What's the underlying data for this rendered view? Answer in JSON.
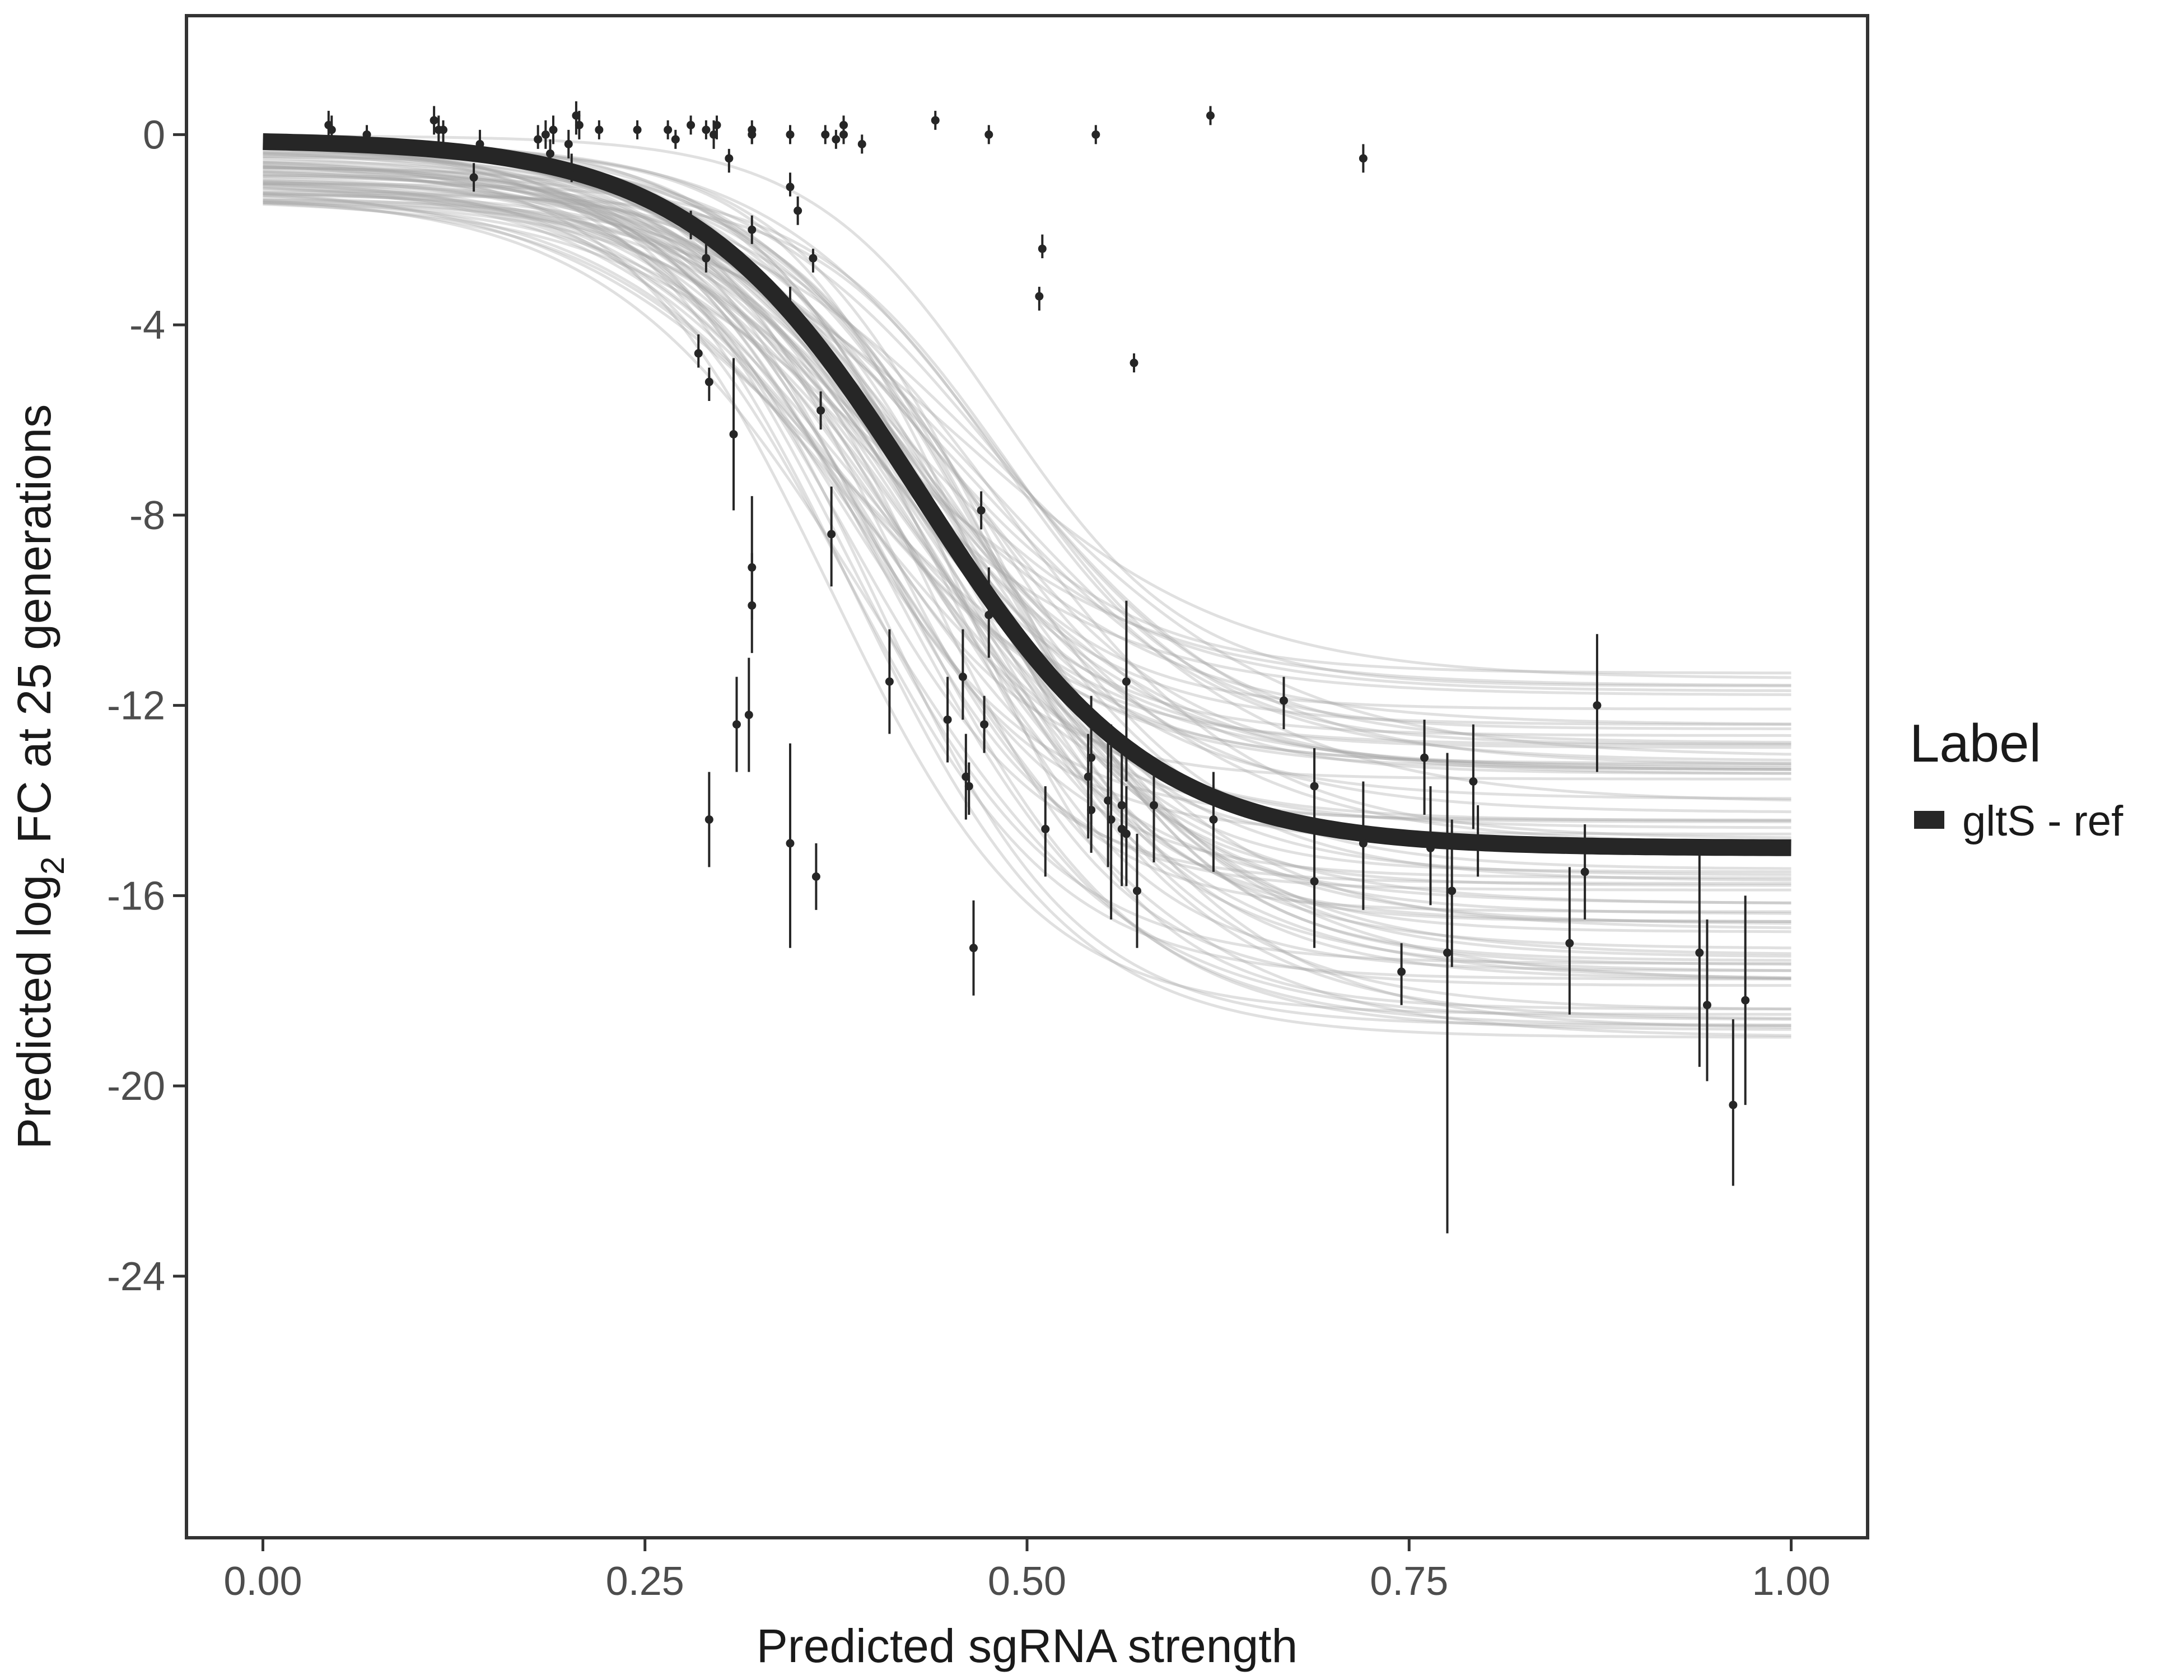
{
  "chart_data": {
    "type": "scatter",
    "title": "",
    "xlabel": "Predicted sgRNA strength",
    "ylabel_parts": {
      "before": "Predicted  log",
      "subscript": "2",
      "after": " FC at 25 generations"
    },
    "xlim": [
      -0.05,
      1.05
    ],
    "ylim": [
      -29.5,
      2.5
    ],
    "x_ticks": [
      0,
      0.25,
      0.5,
      0.75,
      1
    ],
    "x_tick_labels": [
      "0.00",
      "0.25",
      "0.50",
      "0.75",
      "1.00"
    ],
    "y_ticks": [
      0,
      -4,
      -8,
      -12,
      -16,
      -20,
      -24
    ],
    "y_tick_labels": [
      "0",
      "-4",
      "-8",
      "-12",
      "-16",
      "-20",
      "-24"
    ],
    "grid": false,
    "legend": {
      "title": "Label",
      "position": "right",
      "entries": [
        {
          "label": "gltS - ref",
          "color": "#262626"
        }
      ]
    },
    "colors": {
      "fit": "#262626",
      "posterior": "#a6a6a6",
      "points": "#262626",
      "frame": "#333333"
    },
    "fit_curve": {
      "model": "logistic",
      "upper": -0.1,
      "lower": -15.0,
      "midpoint": 0.43,
      "scale": 0.075
    },
    "posterior_draws": {
      "count": 80,
      "upper_range": [
        -1.4,
        0.0
      ],
      "lower_range": [
        -19.0,
        -11.2
      ],
      "midpoint_range": [
        0.37,
        0.49
      ],
      "scale_range": [
        0.06,
        0.095
      ]
    },
    "points": [
      {
        "x": 0.043,
        "y": 0.2,
        "lo": -0.1,
        "hi": 0.5
      },
      {
        "x": 0.045,
        "y": 0.1,
        "lo": -0.2,
        "hi": 0.4
      },
      {
        "x": 0.068,
        "y": 0.0,
        "lo": -0.2,
        "hi": 0.2
      },
      {
        "x": 0.112,
        "y": 0.3,
        "lo": 0.0,
        "hi": 0.6
      },
      {
        "x": 0.115,
        "y": 0.1,
        "lo": -0.2,
        "hi": 0.4
      },
      {
        "x": 0.118,
        "y": 0.1,
        "lo": -0.2,
        "hi": 0.3
      },
      {
        "x": 0.138,
        "y": -0.9,
        "lo": -1.2,
        "hi": -0.6
      },
      {
        "x": 0.142,
        "y": -0.2,
        "lo": -0.5,
        "hi": 0.1
      },
      {
        "x": 0.18,
        "y": -0.1,
        "lo": -0.3,
        "hi": 0.2
      },
      {
        "x": 0.185,
        "y": 0.0,
        "lo": -0.3,
        "hi": 0.3
      },
      {
        "x": 0.188,
        "y": -0.4,
        "lo": -0.7,
        "hi": -0.1
      },
      {
        "x": 0.19,
        "y": 0.1,
        "lo": -0.2,
        "hi": 0.4
      },
      {
        "x": 0.2,
        "y": -0.2,
        "lo": -0.5,
        "hi": 0.1
      },
      {
        "x": 0.202,
        "y": -0.7,
        "lo": -1.0,
        "hi": -0.4
      },
      {
        "x": 0.205,
        "y": 0.4,
        "lo": 0.0,
        "hi": 0.7
      },
      {
        "x": 0.207,
        "y": 0.2,
        "lo": -0.1,
        "hi": 0.5
      },
      {
        "x": 0.22,
        "y": 0.1,
        "lo": -0.1,
        "hi": 0.3
      },
      {
        "x": 0.245,
        "y": 0.1,
        "lo": -0.1,
        "hi": 0.3
      },
      {
        "x": 0.265,
        "y": 0.1,
        "lo": -0.1,
        "hi": 0.3
      },
      {
        "x": 0.27,
        "y": -0.1,
        "lo": -0.3,
        "hi": 0.1
      },
      {
        "x": 0.28,
        "y": 0.2,
        "lo": 0.0,
        "hi": 0.4
      },
      {
        "x": 0.28,
        "y": -1.9,
        "lo": -2.2,
        "hi": -1.6
      },
      {
        "x": 0.285,
        "y": -4.6,
        "lo": -4.9,
        "hi": -4.2
      },
      {
        "x": 0.29,
        "y": 0.1,
        "lo": -0.1,
        "hi": 0.3
      },
      {
        "x": 0.29,
        "y": -2.6,
        "lo": -2.9,
        "hi": -2.3
      },
      {
        "x": 0.292,
        "y": -5.2,
        "lo": -5.6,
        "hi": -4.9
      },
      {
        "x": 0.292,
        "y": -14.4,
        "lo": -15.4,
        "hi": -13.4
      },
      {
        "x": 0.295,
        "y": 0.0,
        "lo": -0.3,
        "hi": 0.3
      },
      {
        "x": 0.297,
        "y": 0.2,
        "lo": -0.1,
        "hi": 0.4
      },
      {
        "x": 0.305,
        "y": -0.5,
        "lo": -0.8,
        "hi": -0.3
      },
      {
        "x": 0.308,
        "y": -6.3,
        "lo": -7.9,
        "hi": -4.7
      },
      {
        "x": 0.31,
        "y": -12.4,
        "lo": -13.4,
        "hi": -11.4
      },
      {
        "x": 0.318,
        "y": -12.2,
        "lo": -13.4,
        "hi": -11.0
      },
      {
        "x": 0.32,
        "y": -9.1,
        "lo": -10.2,
        "hi": -7.6
      },
      {
        "x": 0.32,
        "y": -9.9,
        "lo": -10.9,
        "hi": -8.8
      },
      {
        "x": 0.32,
        "y": -2.0,
        "lo": -2.3,
        "hi": -1.7
      },
      {
        "x": 0.32,
        "y": 0.1,
        "lo": -0.2,
        "hi": 0.3
      },
      {
        "x": 0.32,
        "y": 0.0,
        "lo": -0.2,
        "hi": 0.2
      },
      {
        "x": 0.345,
        "y": -14.9,
        "lo": -17.1,
        "hi": -12.8
      },
      {
        "x": 0.345,
        "y": -3.6,
        "lo": -3.9,
        "hi": -3.2
      },
      {
        "x": 0.345,
        "y": -1.1,
        "lo": -1.3,
        "hi": -0.8
      },
      {
        "x": 0.345,
        "y": 0.0,
        "lo": -0.2,
        "hi": 0.2
      },
      {
        "x": 0.35,
        "y": -1.6,
        "lo": -1.9,
        "hi": -1.3
      },
      {
        "x": 0.36,
        "y": -2.6,
        "lo": -2.9,
        "hi": -2.4
      },
      {
        "x": 0.362,
        "y": -15.6,
        "lo": -16.3,
        "hi": -14.9
      },
      {
        "x": 0.365,
        "y": -5.8,
        "lo": -6.2,
        "hi": -5.4
      },
      {
        "x": 0.368,
        "y": 0.0,
        "lo": -0.2,
        "hi": 0.2
      },
      {
        "x": 0.372,
        "y": -8.4,
        "lo": -9.5,
        "hi": -7.4
      },
      {
        "x": 0.375,
        "y": -0.1,
        "lo": -0.3,
        "hi": 0.1
      },
      {
        "x": 0.38,
        "y": 0.0,
        "lo": -0.2,
        "hi": 0.2
      },
      {
        "x": 0.38,
        "y": 0.2,
        "lo": 0.0,
        "hi": 0.4
      },
      {
        "x": 0.392,
        "y": -0.2,
        "lo": -0.4,
        "hi": 0.0
      },
      {
        "x": 0.41,
        "y": -11.5,
        "lo": -12.6,
        "hi": -10.4
      },
      {
        "x": 0.44,
        "y": 0.3,
        "lo": 0.1,
        "hi": 0.5
      },
      {
        "x": 0.448,
        "y": -12.3,
        "lo": -13.2,
        "hi": -11.4
      },
      {
        "x": 0.458,
        "y": -11.4,
        "lo": -12.3,
        "hi": -10.4
      },
      {
        "x": 0.46,
        "y": -13.5,
        "lo": -14.4,
        "hi": -12.6
      },
      {
        "x": 0.462,
        "y": -13.7,
        "lo": -14.3,
        "hi": -13.2
      },
      {
        "x": 0.465,
        "y": -17.1,
        "lo": -18.1,
        "hi": -16.1
      },
      {
        "x": 0.47,
        "y": -7.9,
        "lo": -8.3,
        "hi": -7.5
      },
      {
        "x": 0.472,
        "y": -12.4,
        "lo": -13.0,
        "hi": -11.8
      },
      {
        "x": 0.475,
        "y": -10.1,
        "lo": -11.0,
        "hi": -9.1
      },
      {
        "x": 0.475,
        "y": 0.0,
        "lo": -0.2,
        "hi": 0.2
      },
      {
        "x": 0.508,
        "y": -3.4,
        "lo": -3.7,
        "hi": -3.2
      },
      {
        "x": 0.51,
        "y": -2.4,
        "lo": -2.6,
        "hi": -2.1
      },
      {
        "x": 0.512,
        "y": -14.6,
        "lo": -15.6,
        "hi": -13.7
      },
      {
        "x": 0.54,
        "y": -13.5,
        "lo": -14.8,
        "hi": -12.6
      },
      {
        "x": 0.542,
        "y": -14.2,
        "lo": -15.1,
        "hi": -13.3
      },
      {
        "x": 0.542,
        "y": -13.1,
        "lo": -14.5,
        "hi": -11.8
      },
      {
        "x": 0.545,
        "y": 0.0,
        "lo": -0.2,
        "hi": 0.2
      },
      {
        "x": 0.553,
        "y": -14.0,
        "lo": -15.4,
        "hi": -12.6
      },
      {
        "x": 0.555,
        "y": -14.4,
        "lo": -16.5,
        "hi": -12.4
      },
      {
        "x": 0.562,
        "y": -14.1,
        "lo": -15.1,
        "hi": -13.0
      },
      {
        "x": 0.562,
        "y": -14.6,
        "lo": -15.8,
        "hi": -13.6
      },
      {
        "x": 0.565,
        "y": -11.5,
        "lo": -13.6,
        "hi": -9.8
      },
      {
        "x": 0.565,
        "y": -14.7,
        "lo": -15.8,
        "hi": -13.7
      },
      {
        "x": 0.57,
        "y": -4.8,
        "lo": -5.0,
        "hi": -4.6
      },
      {
        "x": 0.572,
        "y": -15.9,
        "lo": -17.1,
        "hi": -14.7
      },
      {
        "x": 0.583,
        "y": -14.1,
        "lo": -15.3,
        "hi": -13.2
      },
      {
        "x": 0.62,
        "y": 0.4,
        "lo": 0.2,
        "hi": 0.6
      },
      {
        "x": 0.622,
        "y": -14.4,
        "lo": -15.5,
        "hi": -13.4
      },
      {
        "x": 0.668,
        "y": -11.9,
        "lo": -12.5,
        "hi": -11.4
      },
      {
        "x": 0.688,
        "y": -13.7,
        "lo": -14.4,
        "hi": -12.9
      },
      {
        "x": 0.688,
        "y": -15.7,
        "lo": -17.1,
        "hi": -14.3
      },
      {
        "x": 0.72,
        "y": -14.9,
        "lo": -16.3,
        "hi": -13.6
      },
      {
        "x": 0.72,
        "y": -0.5,
        "lo": -0.8,
        "hi": -0.2
      },
      {
        "x": 0.745,
        "y": -17.6,
        "lo": -18.3,
        "hi": -17.0
      },
      {
        "x": 0.76,
        "y": -13.1,
        "lo": -14.3,
        "hi": -12.3
      },
      {
        "x": 0.764,
        "y": -15.0,
        "lo": -16.2,
        "hi": -13.7
      },
      {
        "x": 0.775,
        "y": -17.2,
        "lo": -23.1,
        "hi": -13.0
      },
      {
        "x": 0.778,
        "y": -15.9,
        "lo": -17.5,
        "hi": -14.4
      },
      {
        "x": 0.792,
        "y": -13.6,
        "lo": -14.6,
        "hi": -12.4
      },
      {
        "x": 0.795,
        "y": -14.9,
        "lo": -15.6,
        "hi": -14.1
      },
      {
        "x": 0.855,
        "y": -17.0,
        "lo": -18.5,
        "hi": -15.4
      },
      {
        "x": 0.865,
        "y": -15.5,
        "lo": -16.5,
        "hi": -14.5
      },
      {
        "x": 0.873,
        "y": -12.0,
        "lo": -13.4,
        "hi": -10.5
      },
      {
        "x": 0.94,
        "y": -17.2,
        "lo": -19.6,
        "hi": -15.1
      },
      {
        "x": 0.945,
        "y": -18.3,
        "lo": -19.9,
        "hi": -16.5
      },
      {
        "x": 0.962,
        "y": -20.4,
        "lo": -22.1,
        "hi": -18.6
      },
      {
        "x": 0.97,
        "y": -18.2,
        "lo": -20.4,
        "hi": -16.0
      }
    ]
  }
}
